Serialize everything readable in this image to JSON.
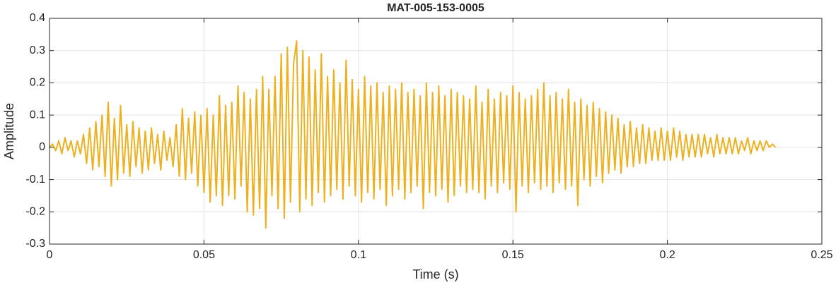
{
  "chart_data": {
    "type": "line",
    "title": "MAT-005-153-0005",
    "xlabel": "Time (s)",
    "ylabel": "Amplitude",
    "xlim": [
      0,
      0.25
    ],
    "ylim": [
      -0.3,
      0.4
    ],
    "xticks": [
      0,
      0.05,
      0.1,
      0.15,
      0.2,
      0.25
    ],
    "yticks": [
      -0.3,
      -0.2,
      -0.1,
      0,
      0.1,
      0.2,
      0.3,
      0.4
    ],
    "grid": true,
    "x": [
      0,
      0.001,
      0.002,
      0.003,
      0.004,
      0.005,
      0.006,
      0.007,
      0.008,
      0.009,
      0.01,
      0.011,
      0.012,
      0.013,
      0.014,
      0.015,
      0.016,
      0.017,
      0.018,
      0.019,
      0.02,
      0.021,
      0.022,
      0.023,
      0.024,
      0.025,
      0.026,
      0.027,
      0.028,
      0.029,
      0.03,
      0.031,
      0.032,
      0.033,
      0.034,
      0.035,
      0.036,
      0.037,
      0.038,
      0.039,
      0.04,
      0.041,
      0.042,
      0.043,
      0.044,
      0.045,
      0.046,
      0.047,
      0.048,
      0.049,
      0.05,
      0.051,
      0.052,
      0.053,
      0.054,
      0.055,
      0.056,
      0.057,
      0.058,
      0.059,
      0.06,
      0.061,
      0.062,
      0.063,
      0.064,
      0.065,
      0.066,
      0.067,
      0.068,
      0.069,
      0.07,
      0.071,
      0.072,
      0.073,
      0.074,
      0.075,
      0.076,
      0.077,
      0.078,
      0.079,
      0.08,
      0.081,
      0.082,
      0.083,
      0.084,
      0.085,
      0.086,
      0.087,
      0.088,
      0.089,
      0.09,
      0.091,
      0.092,
      0.093,
      0.094,
      0.095,
      0.096,
      0.097,
      0.098,
      0.099,
      0.1,
      0.101,
      0.102,
      0.103,
      0.104,
      0.105,
      0.106,
      0.107,
      0.108,
      0.109,
      0.11,
      0.111,
      0.112,
      0.113,
      0.114,
      0.115,
      0.116,
      0.117,
      0.118,
      0.119,
      0.12,
      0.121,
      0.122,
      0.123,
      0.124,
      0.125,
      0.126,
      0.127,
      0.128,
      0.129,
      0.13,
      0.131,
      0.132,
      0.133,
      0.134,
      0.135,
      0.136,
      0.137,
      0.138,
      0.139,
      0.14,
      0.141,
      0.142,
      0.143,
      0.144,
      0.145,
      0.146,
      0.147,
      0.148,
      0.149,
      0.15,
      0.151,
      0.152,
      0.153,
      0.154,
      0.155,
      0.156,
      0.157,
      0.158,
      0.159,
      0.16,
      0.161,
      0.162,
      0.163,
      0.164,
      0.165,
      0.166,
      0.167,
      0.168,
      0.169,
      0.17,
      0.171,
      0.172,
      0.173,
      0.174,
      0.175,
      0.176,
      0.177,
      0.178,
      0.179,
      0.18,
      0.181,
      0.182,
      0.183,
      0.184,
      0.185,
      0.186,
      0.187,
      0.188,
      0.189,
      0.19,
      0.191,
      0.192,
      0.193,
      0.194,
      0.195,
      0.196,
      0.197,
      0.198,
      0.199,
      0.2,
      0.201,
      0.202,
      0.203,
      0.204,
      0.205,
      0.206,
      0.207,
      0.208,
      0.209,
      0.21,
      0.211,
      0.212,
      0.213,
      0.214,
      0.215,
      0.216,
      0.217,
      0.218,
      0.219,
      0.22,
      0.221,
      0.222,
      0.223,
      0.224,
      0.225,
      0.226,
      0.227,
      0.228,
      0.229,
      0.23,
      0.231,
      0.232,
      0.233,
      0.234,
      0.235
    ],
    "series": [
      {
        "color": "#EDB120",
        "values": [
          0.0,
          0.01,
          -0.01,
          0.02,
          -0.02,
          0.03,
          -0.01,
          0.02,
          -0.03,
          0.02,
          -0.02,
          0.04,
          -0.05,
          0.06,
          -0.07,
          0.08,
          -0.06,
          0.1,
          -0.09,
          0.14,
          -0.12,
          0.09,
          -0.1,
          0.13,
          -0.08,
          0.07,
          -0.09,
          0.08,
          -0.06,
          0.06,
          -0.08,
          0.05,
          -0.07,
          0.06,
          -0.05,
          0.04,
          -0.07,
          0.05,
          -0.04,
          0.03,
          -0.06,
          0.07,
          -0.09,
          0.12,
          -0.1,
          0.09,
          -0.08,
          0.11,
          -0.12,
          0.1,
          -0.14,
          0.12,
          -0.17,
          0.1,
          -0.15,
          0.16,
          -0.18,
          0.13,
          -0.15,
          0.14,
          -0.16,
          0.19,
          -0.12,
          0.17,
          -0.2,
          0.15,
          -0.21,
          0.18,
          -0.19,
          0.22,
          -0.25,
          0.18,
          -0.15,
          0.22,
          -0.19,
          0.29,
          -0.22,
          0.31,
          -0.17,
          0.26,
          0.33,
          -0.2,
          0.3,
          -0.16,
          0.28,
          -0.18,
          0.24,
          -0.14,
          0.29,
          -0.17,
          0.22,
          -0.15,
          0.24,
          -0.13,
          0.2,
          -0.16,
          0.27,
          -0.12,
          0.21,
          -0.15,
          0.18,
          -0.17,
          0.22,
          -0.14,
          0.19,
          -0.16,
          0.2,
          -0.13,
          0.17,
          -0.18,
          0.19,
          -0.15,
          0.18,
          -0.13,
          0.2,
          -0.16,
          0.17,
          -0.14,
          0.18,
          -0.12,
          0.16,
          -0.19,
          0.2,
          -0.14,
          0.17,
          -0.15,
          0.19,
          -0.13,
          0.16,
          -0.17,
          0.18,
          -0.15,
          0.17,
          -0.12,
          0.16,
          -0.14,
          0.15,
          -0.13,
          0.19,
          -0.14,
          0.14,
          -0.16,
          0.18,
          -0.12,
          0.15,
          -0.14,
          0.17,
          -0.11,
          0.16,
          -0.13,
          0.19,
          -0.2,
          0.17,
          -0.12,
          0.15,
          -0.14,
          0.16,
          -0.11,
          0.18,
          -0.13,
          0.2,
          -0.12,
          0.16,
          -0.14,
          0.17,
          -0.11,
          0.15,
          -0.13,
          0.18,
          -0.12,
          0.14,
          -0.18,
          0.15,
          -0.1,
          0.13,
          -0.12,
          0.14,
          -0.09,
          0.12,
          -0.11,
          0.11,
          -0.08,
          0.1,
          -0.07,
          0.09,
          -0.08,
          0.07,
          -0.06,
          0.08,
          -0.06,
          0.06,
          -0.05,
          0.07,
          -0.05,
          0.06,
          -0.04,
          0.05,
          -0.04,
          0.06,
          -0.04,
          0.05,
          -0.04,
          0.06,
          -0.03,
          0.05,
          -0.04,
          0.04,
          -0.03,
          0.04,
          -0.03,
          0.04,
          -0.03,
          0.04,
          -0.02,
          0.03,
          -0.03,
          0.04,
          -0.02,
          0.03,
          -0.02,
          0.03,
          -0.02,
          0.03,
          -0.02,
          0.02,
          -0.01,
          0.03,
          -0.02,
          0.02,
          -0.01,
          0.02,
          -0.01,
          0.02,
          0.0,
          0.01,
          0.0
        ]
      }
    ]
  }
}
